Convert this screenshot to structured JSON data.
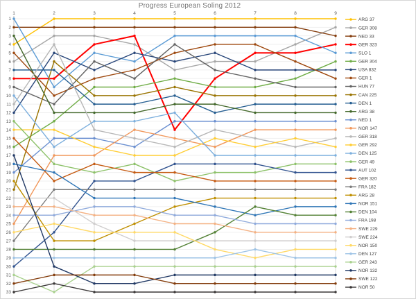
{
  "chart_data": {
    "type": "line",
    "subtype": "bump-rank-progression",
    "title": "Progress European Soling 2012",
    "xlabel": "",
    "ylabel": "",
    "x_ticks": [
      1,
      2,
      3,
      4,
      5,
      6,
      7,
      8,
      9
    ],
    "y_ticks": [
      1,
      2,
      3,
      4,
      5,
      6,
      7,
      8,
      9,
      10,
      11,
      12,
      13,
      14,
      15,
      16,
      17,
      18,
      19,
      20,
      21,
      22,
      23,
      24,
      25,
      26,
      27,
      28,
      29,
      30,
      31,
      32,
      33
    ],
    "y_axis_reversed": true,
    "xlim": [
      1,
      9
    ],
    "ylim": [
      1,
      33
    ],
    "grid": true,
    "legend_position": "right",
    "axis_color": "#bfbfbf",
    "grid_color_vertical": "#d9d9d9",
    "grid_color_horizontal": "#efefef",
    "tick_label_color": "#595959",
    "legend_label_color": "#404040",
    "series": [
      {
        "name": "ARG 37",
        "color": "#FFC000",
        "positions": [
          4,
          1,
          1,
          1,
          1,
          1,
          1,
          1,
          1
        ]
      },
      {
        "name": "GER 308",
        "color": "#A6A6A6",
        "positions": [
          6,
          3,
          3,
          4,
          7,
          6,
          6,
          4,
          2
        ]
      },
      {
        "name": "NED 33",
        "color": "#843C0C",
        "positions": [
          2,
          2,
          2,
          2,
          2,
          2,
          2,
          2,
          3
        ]
      },
      {
        "name": "GER 323",
        "color": "#FF0000",
        "width": 2,
        "positions": [
          8,
          8,
          4,
          3,
          14,
          8,
          5,
          5,
          4
        ]
      },
      {
        "name": "SLO 1",
        "color": "#5B9BD5",
        "positions": [
          1,
          9,
          5,
          6,
          3,
          3,
          3,
          3,
          5
        ]
      },
      {
        "name": "GER 304",
        "color": "#70AD47",
        "positions": [
          16,
          13,
          9,
          9,
          8,
          9,
          9,
          8,
          6
        ]
      },
      {
        "name": "USA 832",
        "color": "#264478",
        "positions": [
          12,
          5,
          7,
          5,
          6,
          5,
          7,
          7,
          7
        ]
      },
      {
        "name": "GER 1",
        "color": "#9E480E",
        "positions": [
          5,
          10,
          8,
          7,
          5,
          4,
          4,
          6,
          8
        ]
      },
      {
        "name": "HUN 77",
        "color": "#636363",
        "positions": [
          9,
          11,
          6,
          8,
          4,
          7,
          8,
          9,
          9
        ]
      },
      {
        "name": "CAN 225",
        "color": "#997300",
        "positions": [
          21,
          6,
          10,
          10,
          9,
          10,
          10,
          10,
          10
        ]
      },
      {
        "name": "DEN 1",
        "color": "#255E91",
        "positions": [
          7,
          7,
          11,
          11,
          10,
          12,
          11,
          11,
          11
        ]
      },
      {
        "name": "ARG 38",
        "color": "#43682B",
        "positions": [
          3,
          12,
          12,
          12,
          11,
          11,
          12,
          12,
          12
        ]
      },
      {
        "name": "NED 1",
        "color": "#698ED0",
        "positions": [
          19,
          15,
          15,
          16,
          13,
          13,
          13,
          13,
          13
        ]
      },
      {
        "name": "NOR 147",
        "color": "#F1975A",
        "positions": [
          25,
          17,
          17,
          14,
          15,
          16,
          14,
          14,
          14
        ]
      },
      {
        "name": "GER 318",
        "color": "#B7B7B7",
        "positions": [
          11,
          4,
          14,
          15,
          16,
          14,
          15,
          16,
          15
        ]
      },
      {
        "name": "GER 292",
        "color": "#FFCD33",
        "positions": [
          14,
          14,
          16,
          17,
          17,
          15,
          16,
          15,
          16
        ]
      },
      {
        "name": "DEN 125",
        "color": "#7CAFDD",
        "positions": [
          10,
          16,
          13,
          13,
          12,
          17,
          17,
          17,
          17
        ]
      },
      {
        "name": "GER 49",
        "color": "#8CC168",
        "positions": [
          13,
          18,
          19,
          18,
          20,
          19,
          19,
          18,
          18
        ]
      },
      {
        "name": "AUT 102",
        "color": "#31538F",
        "positions": [
          30,
          26,
          20,
          20,
          18,
          18,
          18,
          19,
          19
        ]
      },
      {
        "name": "GER 320",
        "color": "#C55A11",
        "positions": [
          15,
          20,
          18,
          19,
          19,
          20,
          20,
          20,
          20
        ]
      },
      {
        "name": "FRA 182",
        "color": "#7B7B7B",
        "positions": [
          27,
          21,
          21,
          21,
          21,
          21,
          21,
          21,
          21
        ]
      },
      {
        "name": "ARG 28",
        "color": "#BF8F00",
        "positions": [
          20,
          27,
          27,
          25,
          23,
          22,
          22,
          22,
          22
        ]
      },
      {
        "name": "NOR 151",
        "color": "#2E75B6",
        "positions": [
          18,
          19,
          22,
          22,
          22,
          23,
          24,
          23,
          23
        ]
      },
      {
        "name": "DEN 104",
        "color": "#538135",
        "positions": [
          28,
          28,
          28,
          28,
          28,
          26,
          23,
          24,
          24
        ]
      },
      {
        "name": "FRA 198",
        "color": "#8FAADC",
        "positions": [
          24,
          24,
          23,
          23,
          24,
          24,
          25,
          25,
          25
        ]
      },
      {
        "name": "SWE 229",
        "color": "#F4B183",
        "positions": [
          23,
          23,
          24,
          24,
          25,
          25,
          26,
          26,
          26
        ]
      },
      {
        "name": "SWE 224",
        "color": "#D0CECE",
        "positions": [
          22,
          22,
          25,
          27,
          27,
          27,
          27,
          27,
          27
        ]
      },
      {
        "name": "NOR 150",
        "color": "#FFD966",
        "positions": [
          26,
          25,
          26,
          26,
          26,
          28,
          29,
          28,
          28
        ]
      },
      {
        "name": "DEN 127",
        "color": "#9DC3E6",
        "positions": [
          29,
          29,
          29,
          29,
          29,
          29,
          28,
          29,
          29
        ]
      },
      {
        "name": "GER 243",
        "color": "#A9D18E",
        "positions": [
          31,
          33,
          30,
          30,
          30,
          30,
          30,
          30,
          30
        ]
      },
      {
        "name": "NOR 132",
        "color": "#203864",
        "positions": [
          17,
          30,
          32,
          32,
          31,
          31,
          31,
          31,
          31
        ]
      },
      {
        "name": "SWE 122",
        "color": "#823B0B",
        "positions": [
          32,
          31,
          31,
          31,
          32,
          32,
          32,
          32,
          32
        ]
      },
      {
        "name": "NOR 50",
        "color": "#3B3838",
        "positions": [
          33,
          32,
          33,
          33,
          33,
          33,
          33,
          33,
          33
        ]
      }
    ]
  }
}
